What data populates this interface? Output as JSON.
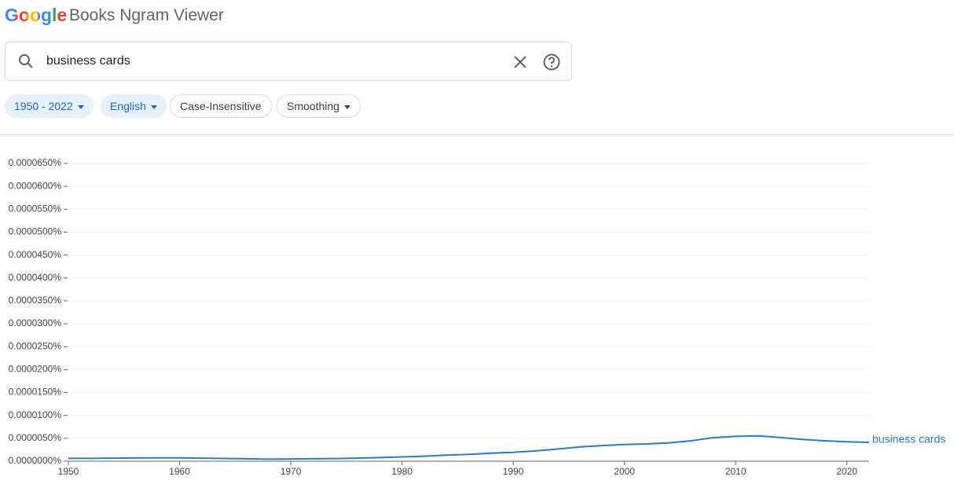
{
  "header": {
    "logo": "Google",
    "title": "Books Ngram Viewer"
  },
  "search": {
    "query": "business cards"
  },
  "chips": [
    "1950 - 2022",
    "English",
    "Case-Insensitive",
    "Smoothing"
  ],
  "chart_data": {
    "type": "line",
    "x": [
      1950,
      1952,
      1954,
      1956,
      1958,
      1960,
      1962,
      1964,
      1966,
      1968,
      1970,
      1972,
      1974,
      1976,
      1978,
      1980,
      1982,
      1984,
      1986,
      1988,
      1990,
      1992,
      1994,
      1996,
      1998,
      2000,
      2002,
      2004,
      2006,
      2008,
      2010,
      2012,
      2014,
      2016,
      2018,
      2020,
      2022
    ],
    "series": [
      {
        "name": "business cards",
        "color": "#2a7bc4",
        "values": [
          6.2e-07,
          6.3e-07,
          6.7e-07,
          7e-07,
          7.2e-07,
          7.2e-07,
          6.7e-07,
          6e-07,
          5.3e-07,
          4.6e-07,
          5e-07,
          5.3e-07,
          5.8e-07,
          6.7e-07,
          7.9e-07,
          9.4e-07,
          1.1e-06,
          1.32e-06,
          1.49e-06,
          1.75e-06,
          1.94e-06,
          2.26e-06,
          2.66e-06,
          3.12e-06,
          3.41e-06,
          3.65e-06,
          3.77e-06,
          4.01e-06,
          4.46e-06,
          5.15e-06,
          5.42e-06,
          5.54e-06,
          5.18e-06,
          4.75e-06,
          4.46e-06,
          4.25e-06,
          4.12e-06
        ]
      }
    ],
    "xlim": [
      1950,
      2022
    ],
    "xticks": [
      1950,
      1960,
      1970,
      1980,
      1990,
      2000,
      2010,
      2020
    ],
    "ylim": [
      0,
      6.5e-05
    ],
    "yticks": [
      {
        "value": 0,
        "label": "0.0000000%"
      },
      {
        "value": 5e-06,
        "label": "0.0000050%"
      },
      {
        "value": 1e-05,
        "label": "0.0000100%"
      },
      {
        "value": 1.5e-05,
        "label": "0.0000150%"
      },
      {
        "value": 2e-05,
        "label": "0.0000200%"
      },
      {
        "value": 2.5e-05,
        "label": "0.0000250%"
      },
      {
        "value": 3e-05,
        "label": "0.0000300%"
      },
      {
        "value": 3.5e-05,
        "label": "0.0000350%"
      },
      {
        "value": 4e-05,
        "label": "0.0000400%"
      },
      {
        "value": 4.5e-05,
        "label": "0.0000450%"
      },
      {
        "value": 5e-05,
        "label": "0.0000500%"
      },
      {
        "value": 5.5e-05,
        "label": "0.0000550%"
      },
      {
        "value": 6e-05,
        "label": "0.0000600%"
      },
      {
        "value": 6.5e-05,
        "label": "0.0000650%"
      }
    ],
    "grid": true
  }
}
